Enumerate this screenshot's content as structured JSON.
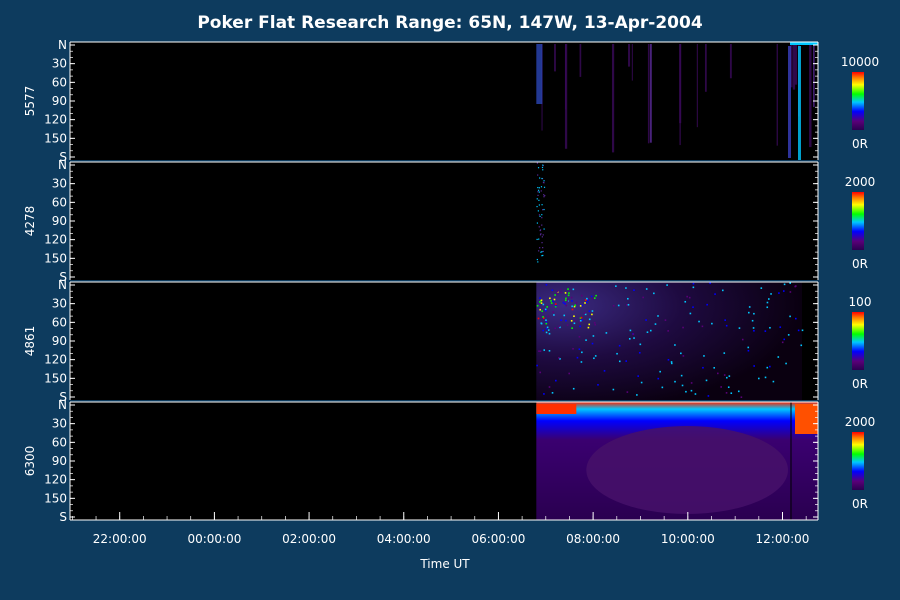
{
  "chart_data": {
    "type": "heatmap",
    "title": "Poker Flat Research Range: 65N, 147W, 13-Apr-2004",
    "xlabel": "Time UT",
    "x_ticks": [
      "22:00:00",
      "00:00:00",
      "02:00:00",
      "04:00:00",
      "06:00:00",
      "08:00:00",
      "10:00:00",
      "12:00:00"
    ],
    "x_range_hours": [
      20.95,
      36.75
    ],
    "data_start_hour": 30.8,
    "y_ticks": [
      "N",
      "30",
      "60",
      "90",
      "120",
      "150",
      "S"
    ],
    "y_range_deg": [
      0,
      180
    ],
    "panels": [
      {
        "label": "5577",
        "cbar_max": "10000",
        "cbar_min": "0R"
      },
      {
        "label": "4278",
        "cbar_max": "2000",
        "cbar_min": "0R"
      },
      {
        "label": "4861",
        "cbar_max": "100",
        "cbar_min": "0R"
      },
      {
        "label": "6300",
        "cbar_max": "2000",
        "cbar_min": "0R"
      }
    ],
    "colormap": [
      "#000000",
      "#5a0078",
      "#0000ff",
      "#00c8ff",
      "#00ff00",
      "#ffff00",
      "#ff8000",
      "#ff0000"
    ],
    "grid": false
  }
}
